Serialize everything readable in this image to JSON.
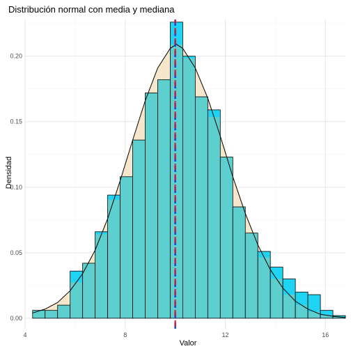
{
  "chart_data": {
    "type": "bar",
    "title": "Distribución normal con media y mediana",
    "xlabel": "Valor",
    "ylabel": "Densidad",
    "xlim": [
      4,
      16.8
    ],
    "ylim": [
      -0.008,
      0.228
    ],
    "x_ticks": [
      4,
      8,
      12,
      16
    ],
    "y_ticks": [
      0.0,
      0.05,
      0.1,
      0.15,
      0.2
    ],
    "y_tick_labels": [
      "0.00",
      "0.05",
      "0.10",
      "0.15",
      "0.20"
    ],
    "grid": true,
    "histogram": {
      "bin_edges": [
        4.3,
        4.8,
        5.3,
        5.8,
        6.3,
        6.8,
        7.3,
        7.8,
        8.3,
        8.8,
        9.3,
        9.8,
        10.3,
        10.8,
        11.3,
        11.8,
        12.3,
        12.8,
        13.3,
        13.8,
        14.3,
        14.8,
        15.3,
        15.8,
        16.3,
        16.8
      ],
      "values": [
        0.006,
        0.006,
        0.01,
        0.036,
        0.042,
        0.066,
        0.094,
        0.108,
        0.136,
        0.172,
        0.182,
        0.226,
        0.2,
        0.169,
        0.159,
        0.123,
        0.085,
        0.065,
        0.051,
        0.039,
        0.03,
        0.02,
        0.018,
        0.006,
        0.002
      ],
      "fill": "#1fd4f2",
      "overlay_fill": "#5ecfcf",
      "border": "#000000"
    },
    "density_curve": {
      "x": [
        4.3,
        4.8,
        5.3,
        5.8,
        6.3,
        6.8,
        7.3,
        7.8,
        8.3,
        8.8,
        9.3,
        9.8,
        10.05,
        10.3,
        10.8,
        11.3,
        11.8,
        12.3,
        12.8,
        13.3,
        13.8,
        14.3,
        14.8,
        15.3,
        15.8,
        16.3,
        16.8
      ],
      "y": [
        0.004,
        0.007,
        0.012,
        0.021,
        0.034,
        0.052,
        0.076,
        0.105,
        0.136,
        0.166,
        0.191,
        0.206,
        0.209,
        0.206,
        0.191,
        0.168,
        0.139,
        0.108,
        0.08,
        0.056,
        0.037,
        0.023,
        0.013,
        0.007,
        0.003,
        0.0015,
        0.0005
      ],
      "fill": "#f5e6cc",
      "stroke": "#000000"
    },
    "reference_lines": {
      "mean": {
        "value": 10.0,
        "color": "#1e3fd6"
      },
      "median": {
        "value": 10.0,
        "color": "#e0122b"
      }
    }
  }
}
